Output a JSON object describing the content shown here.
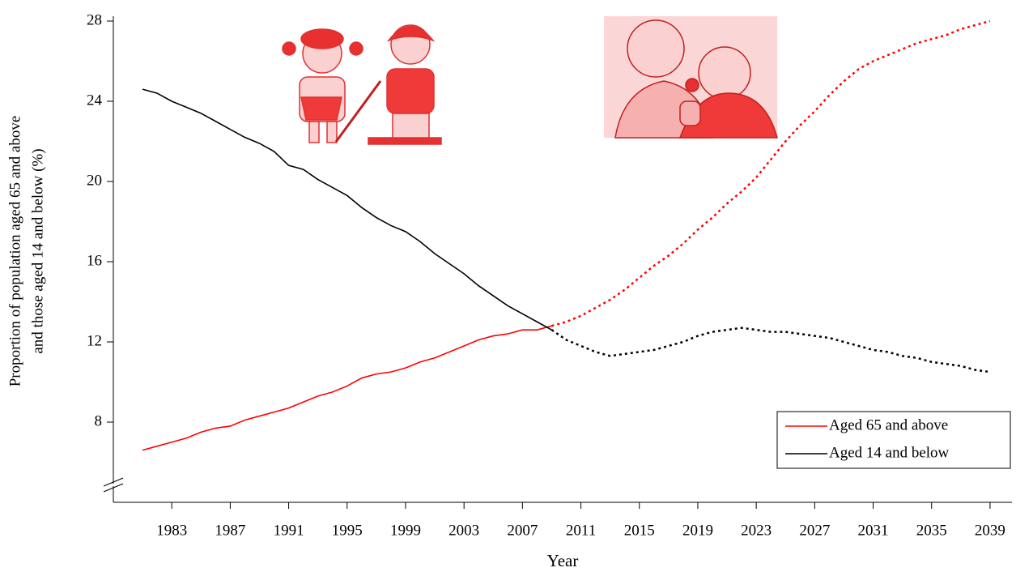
{
  "chart_data": {
    "type": "line",
    "x_label": "Year",
    "y_label": [
      "Proportion of population aged 65 and above",
      "and those aged 14 and below (%)"
    ],
    "x": [
      1981,
      1982,
      1983,
      1984,
      1985,
      1986,
      1987,
      1988,
      1989,
      1990,
      1991,
      1992,
      1993,
      1994,
      1995,
      1996,
      1997,
      1998,
      1999,
      2000,
      2001,
      2002,
      2003,
      2004,
      2005,
      2006,
      2007,
      2008,
      2009,
      2010,
      2011,
      2012,
      2013,
      2014,
      2015,
      2016,
      2017,
      2018,
      2019,
      2020,
      2021,
      2022,
      2023,
      2024,
      2025,
      2026,
      2027,
      2028,
      2029,
      2030,
      2031,
      2032,
      2033,
      2034,
      2035,
      2036,
      2037,
      2038,
      2039
    ],
    "series": [
      {
        "name": "Aged 65 and above",
        "color": "#ff0000",
        "values": [
          6.6,
          6.8,
          7.0,
          7.2,
          7.5,
          7.7,
          7.8,
          8.1,
          8.3,
          8.5,
          8.7,
          9.0,
          9.3,
          9.5,
          9.8,
          10.2,
          10.4,
          10.5,
          10.7,
          11.0,
          11.2,
          11.5,
          11.8,
          12.1,
          12.3,
          12.4,
          12.6,
          12.6,
          12.8,
          null,
          null,
          null,
          null,
          null,
          null,
          null,
          null,
          null,
          null,
          null,
          null,
          null,
          null,
          null,
          null,
          null,
          null,
          null,
          null,
          null,
          null,
          null,
          null,
          null,
          null,
          null,
          null,
          null,
          null
        ],
        "projected_values": [
          null,
          null,
          null,
          null,
          null,
          null,
          null,
          null,
          null,
          null,
          null,
          null,
          null,
          null,
          null,
          null,
          null,
          null,
          null,
          null,
          null,
          null,
          null,
          null,
          null,
          null,
          null,
          null,
          12.8,
          13.0,
          13.3,
          13.7,
          14.1,
          14.6,
          15.2,
          15.8,
          16.3,
          16.9,
          17.6,
          18.2,
          18.9,
          19.5,
          20.2,
          21.1,
          22.0,
          22.8,
          23.5,
          24.3,
          25.0,
          25.6,
          26.0,
          26.3,
          26.6,
          26.9,
          27.1,
          27.3,
          27.6,
          27.8,
          28.0
        ]
      },
      {
        "name": "Aged 14 and below",
        "color": "#000000",
        "values": [
          24.6,
          24.4,
          24.0,
          23.7,
          23.4,
          23.0,
          22.6,
          22.2,
          21.9,
          21.5,
          20.8,
          20.6,
          20.1,
          19.7,
          19.3,
          18.7,
          18.2,
          17.8,
          17.5,
          17.0,
          16.4,
          15.9,
          15.4,
          14.8,
          14.3,
          13.8,
          13.4,
          13.0,
          12.6,
          null,
          null,
          null,
          null,
          null,
          null,
          null,
          null,
          null,
          null,
          null,
          null,
          null,
          null,
          null,
          null,
          null,
          null,
          null,
          null,
          null,
          null,
          null,
          null,
          null,
          null,
          null,
          null,
          null,
          null
        ],
        "projected_values": [
          null,
          null,
          null,
          null,
          null,
          null,
          null,
          null,
          null,
          null,
          null,
          null,
          null,
          null,
          null,
          null,
          null,
          null,
          null,
          null,
          null,
          null,
          null,
          null,
          null,
          null,
          null,
          null,
          12.6,
          12.1,
          11.8,
          11.5,
          11.3,
          11.4,
          11.5,
          11.6,
          11.8,
          12.0,
          12.3,
          12.5,
          12.6,
          12.7,
          12.6,
          12.5,
          12.5,
          12.4,
          12.3,
          12.2,
          12.0,
          11.8,
          11.6,
          11.5,
          11.3,
          11.2,
          11.0,
          10.9,
          10.8,
          10.6,
          10.5
        ]
      }
    ],
    "xlim": [
      1979,
      2040.5
    ],
    "xticks": [
      1983,
      1987,
      1991,
      1995,
      1999,
      2003,
      2007,
      2011,
      2015,
      2019,
      2023,
      2027,
      2031,
      2035,
      2039
    ],
    "ylim": [
      4,
      28
    ],
    "yticks": [
      8,
      12,
      16,
      20,
      24,
      28
    ],
    "legend": "lower right"
  }
}
